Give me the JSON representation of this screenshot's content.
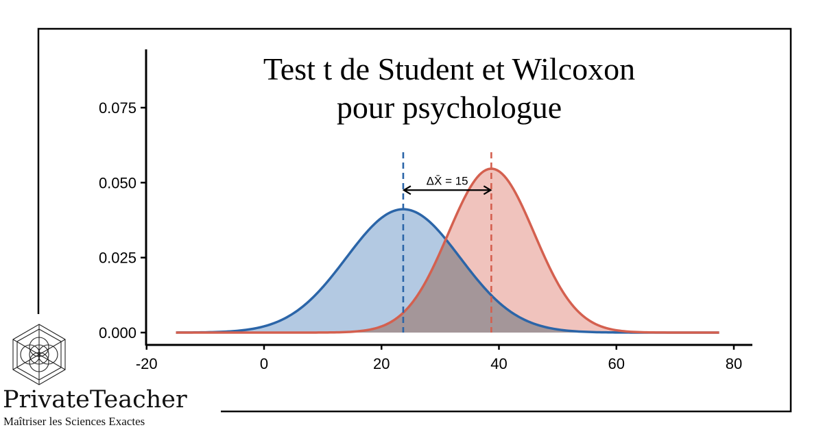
{
  "chart_data": {
    "type": "area",
    "title_line1": "Test t de Student et Wilcoxon",
    "title_line2": "pour psychologue",
    "xlabel": "",
    "ylabel": "",
    "xlim": [
      -20,
      83
    ],
    "ylim": [
      0,
      0.093
    ],
    "x_ticks": [
      "-20",
      "0",
      "20",
      "40",
      "60",
      "80"
    ],
    "x_tick_values": [
      -20,
      0,
      20,
      40,
      60,
      80
    ],
    "y_ticks": [
      "0.000",
      "0.025",
      "0.050",
      "0.075"
    ],
    "y_tick_values": [
      0,
      0.025,
      0.05,
      0.075
    ],
    "x_range": [
      -15,
      77.5
    ],
    "series": [
      {
        "mean": 23.7,
        "sd": 9.7,
        "color": "#2b65a8",
        "fill": "#b3c9e2"
      },
      {
        "mean": 38.7,
        "sd": 7.3,
        "color": "#d4604f",
        "fill": "#f0c3bd"
      }
    ],
    "overlap_fill": "#a49699",
    "annotation": {
      "text": "ΔX̄ = 15",
      "from": 23.7,
      "to": 38.7,
      "y": 0.0475
    }
  },
  "brand": {
    "name": "PrivateTeacher",
    "tagline": "Maîtriser les Sciences Exactes"
  }
}
